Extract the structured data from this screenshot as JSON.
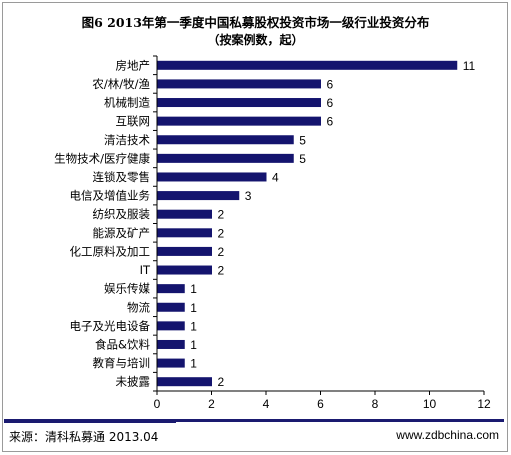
{
  "chart_data": {
    "type": "bar",
    "orientation": "horizontal",
    "title": "图6 2013年第一季度中国私募股权投资市场一级行业投资分布",
    "subtitle": "（按案例数，起）",
    "categories": [
      "房地产",
      "农/林/牧/渔",
      "机械制造",
      "互联网",
      "清洁技术",
      "生物技术/医疗健康",
      "连锁及零售",
      "电信及增值业务",
      "纺织及服装",
      "能源及矿产",
      "化工原料及加工",
      "IT",
      "娱乐传媒",
      "物流",
      "电子及光电设备",
      "食品&饮料",
      "教育与培训",
      "未披露"
    ],
    "values": [
      11,
      6,
      6,
      6,
      5,
      5,
      4,
      3,
      2,
      2,
      2,
      2,
      1,
      1,
      1,
      1,
      1,
      2
    ],
    "xlim": [
      0,
      12
    ],
    "xticks": [
      0,
      2,
      4,
      6,
      8,
      10,
      12
    ],
    "xlabel": "",
    "ylabel": "",
    "grid": false,
    "bar_color": "#14146e",
    "data_labels": true
  },
  "footer": {
    "source": "来源：清科私募通 2013.04",
    "website": "www.zdbchina.com",
    "rule_color": "#1a1a70"
  }
}
